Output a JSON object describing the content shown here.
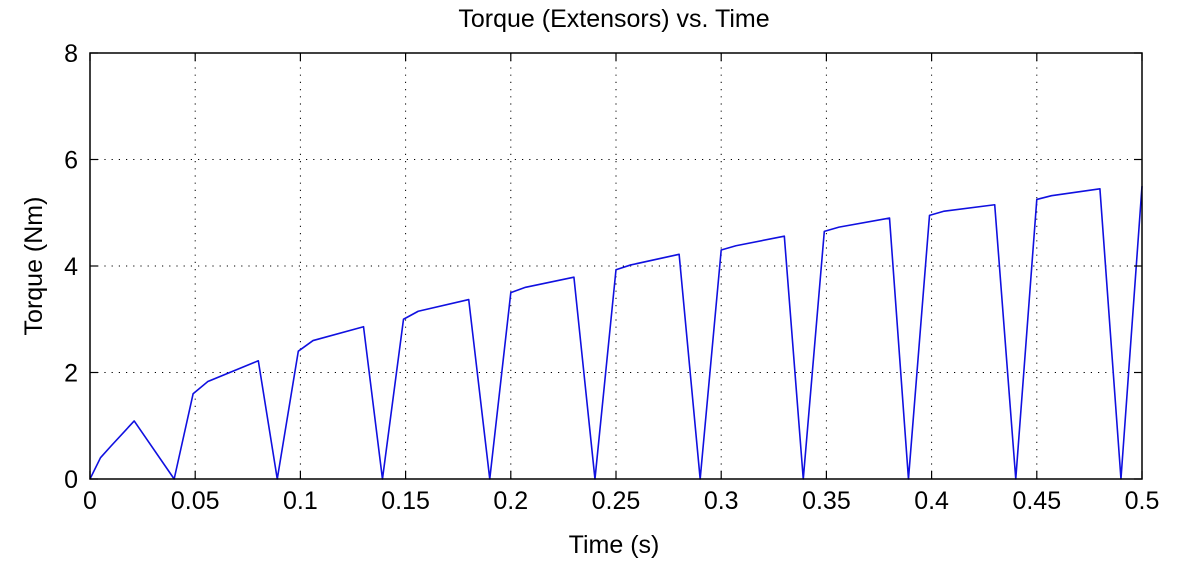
{
  "chart_data": {
    "type": "line",
    "title": "Torque (Extensors) vs. Time",
    "xlabel": "Time (s)",
    "ylabel": "Torque (Nm)",
    "xlim": [
      0,
      0.5
    ],
    "ylim": [
      0,
      8
    ],
    "xticks": [
      0,
      0.05,
      0.1,
      0.15,
      0.2,
      0.25,
      0.3,
      0.35,
      0.4,
      0.45,
      0.5
    ],
    "xtick_labels": [
      "0",
      "0.05",
      "0.1",
      "0.15",
      "0.2",
      "0.25",
      "0.3",
      "0.35",
      "0.4",
      "0.45",
      "0.5"
    ],
    "yticks": [
      0,
      2,
      4,
      6,
      8
    ],
    "ytick_labels": [
      "0",
      "2",
      "4",
      "6",
      "8"
    ],
    "grid": true,
    "grid_style": "dotted",
    "line_color": "#1010e0",
    "series": [
      {
        "x": [
          0,
          0.005,
          0.01,
          0.021,
          0.04,
          0.049,
          0.056,
          0.08,
          0.089,
          0.099,
          0.106,
          0.13,
          0.139,
          0.149,
          0.156,
          0.18,
          0.19,
          0.2,
          0.207,
          0.23,
          0.24,
          0.25,
          0.257,
          0.28,
          0.29,
          0.3,
          0.307,
          0.33,
          0.339,
          0.349,
          0.356,
          0.38,
          0.389,
          0.399,
          0.406,
          0.43,
          0.44,
          0.45,
          0.457,
          0.48,
          0.49,
          0.5
        ],
        "y": [
          0,
          0.4,
          0.62,
          1.09,
          0,
          1.6,
          1.83,
          2.22,
          0,
          2.4,
          2.6,
          2.86,
          0,
          3.0,
          3.15,
          3.37,
          0,
          3.5,
          3.6,
          3.79,
          0,
          3.93,
          4.02,
          4.22,
          0,
          4.3,
          4.38,
          4.56,
          0,
          4.65,
          4.73,
          4.9,
          0,
          4.95,
          5.03,
          5.15,
          0,
          5.25,
          5.32,
          5.45,
          0,
          5.5
        ]
      }
    ]
  }
}
